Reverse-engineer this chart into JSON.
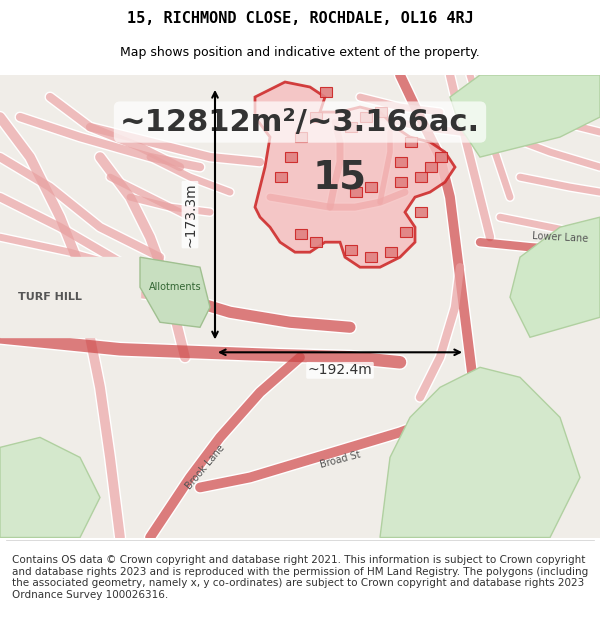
{
  "title_line1": "15, RICHMOND CLOSE, ROCHDALE, OL16 4RJ",
  "title_line2": "Map shows position and indicative extent of the property.",
  "area_text": "~12812m²/~3.166ac.",
  "label_15": "15",
  "dim_vertical": "~173.3m",
  "dim_horizontal": "~192.4m",
  "copyright_text": "Contains OS data © Crown copyright and database right 2021. This information is subject to Crown copyright and database rights 2023 and is reproduced with the permission of HM Land Registry. The polygons (including the associated geometry, namely x, y co-ordinates) are subject to Crown copyright and database rights 2023 Ordnance Survey 100026316.",
  "bg_color": "#f5f5f5",
  "map_bg_color": "#f0ede8",
  "title_fontsize": 11,
  "subtitle_fontsize": 9,
  "area_fontsize": 22,
  "label_fontsize": 28,
  "dim_fontsize": 10,
  "copyright_fontsize": 7.5,
  "road_color": "#e8a0a0",
  "plot_color": "#cc2222",
  "plot_fill": "#f5c0c0",
  "street_color": "#d44444",
  "green_color": "#c8e0c0"
}
